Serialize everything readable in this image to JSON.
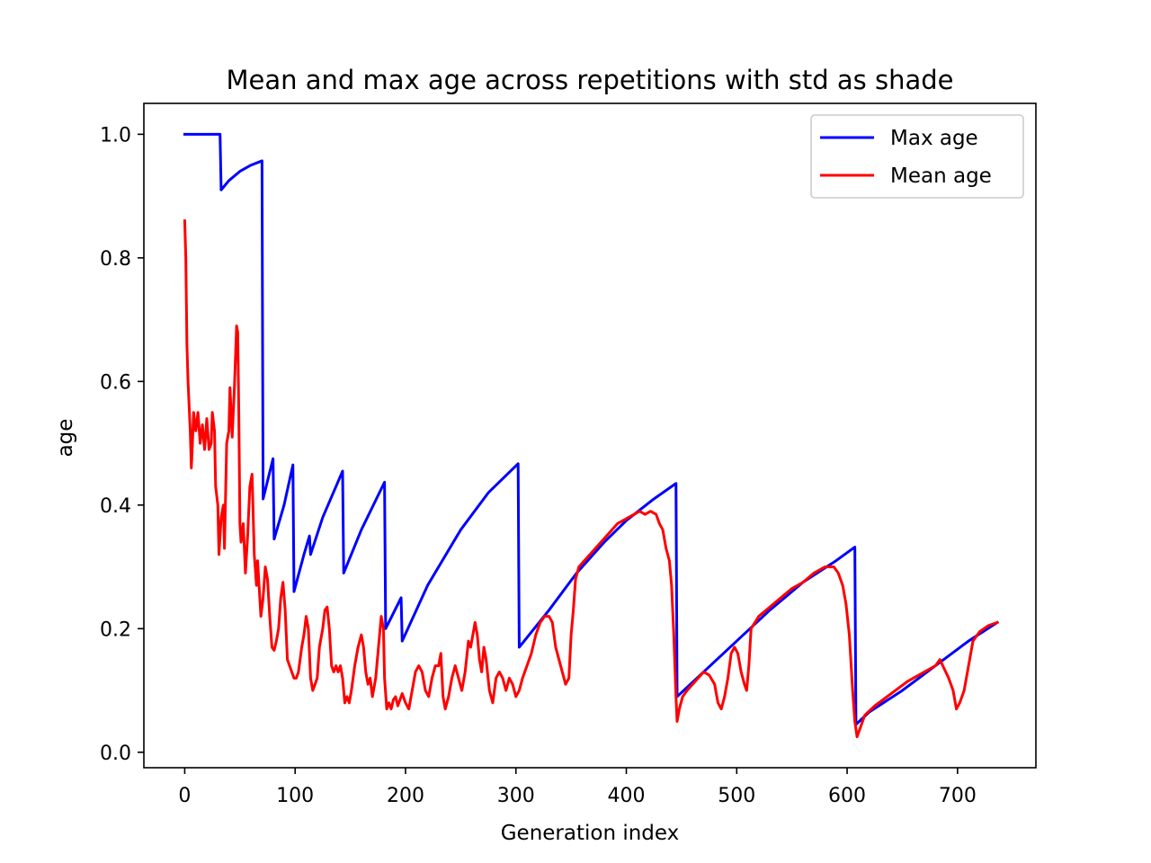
{
  "chart_data": {
    "type": "line",
    "title": "Mean and max age across repetitions with std as shade",
    "xlabel": "Generation index",
    "ylabel": "age",
    "xlim": [
      -37,
      771
    ],
    "ylim": [
      -0.025,
      1.05
    ],
    "xticks": [
      0,
      100,
      200,
      300,
      400,
      500,
      600,
      700
    ],
    "yticks": [
      0.0,
      0.2,
      0.4,
      0.6,
      0.8,
      1.0
    ],
    "xtick_labels": [
      "0",
      "100",
      "200",
      "300",
      "400",
      "500",
      "600",
      "700"
    ],
    "ytick_labels": [
      "0.0",
      "0.2",
      "0.4",
      "0.6",
      "0.8",
      "1.0"
    ],
    "legend": {
      "placement": "top-right",
      "entries": [
        "Max age",
        "Mean age"
      ]
    },
    "series": [
      {
        "name": "Max age",
        "color": "#0000ff",
        "points": [
          [
            0,
            1.0
          ],
          [
            32,
            1.0
          ],
          [
            33,
            0.91
          ],
          [
            40,
            0.925
          ],
          [
            50,
            0.94
          ],
          [
            60,
            0.95
          ],
          [
            70,
            0.957
          ],
          [
            71,
            0.41
          ],
          [
            80,
            0.475
          ],
          [
            81,
            0.345
          ],
          [
            90,
            0.4
          ],
          [
            98,
            0.465
          ],
          [
            99,
            0.26
          ],
          [
            108,
            0.32
          ],
          [
            113,
            0.35
          ],
          [
            114,
            0.32
          ],
          [
            125,
            0.38
          ],
          [
            143,
            0.455
          ],
          [
            144,
            0.29
          ],
          [
            160,
            0.36
          ],
          [
            181,
            0.437
          ],
          [
            182,
            0.2
          ],
          [
            196,
            0.25
          ],
          [
            197,
            0.18
          ],
          [
            220,
            0.27
          ],
          [
            250,
            0.36
          ],
          [
            275,
            0.42
          ],
          [
            302,
            0.467
          ],
          [
            303,
            0.17
          ],
          [
            330,
            0.23
          ],
          [
            355,
            0.29
          ],
          [
            380,
            0.34
          ],
          [
            400,
            0.375
          ],
          [
            425,
            0.41
          ],
          [
            445,
            0.435
          ],
          [
            446,
            0.09
          ],
          [
            470,
            0.13
          ],
          [
            500,
            0.18
          ],
          [
            530,
            0.23
          ],
          [
            560,
            0.275
          ],
          [
            590,
            0.31
          ],
          [
            607,
            0.332
          ],
          [
            608,
            0.045
          ],
          [
            620,
            0.065
          ],
          [
            650,
            0.1
          ],
          [
            680,
            0.14
          ],
          [
            710,
            0.18
          ],
          [
            736,
            0.21
          ]
        ]
      },
      {
        "name": "Mean age",
        "color": "#ff0000",
        "points": [
          [
            0,
            0.86
          ],
          [
            1,
            0.8
          ],
          [
            2,
            0.66
          ],
          [
            3,
            0.6
          ],
          [
            5,
            0.52
          ],
          [
            6,
            0.46
          ],
          [
            7,
            0.5
          ],
          [
            8,
            0.55
          ],
          [
            10,
            0.52
          ],
          [
            12,
            0.55
          ],
          [
            14,
            0.5
          ],
          [
            16,
            0.53
          ],
          [
            18,
            0.49
          ],
          [
            20,
            0.54
          ],
          [
            22,
            0.49
          ],
          [
            24,
            0.5
          ],
          [
            25,
            0.55
          ],
          [
            27,
            0.52
          ],
          [
            28,
            0.43
          ],
          [
            30,
            0.4
          ],
          [
            31,
            0.32
          ],
          [
            33,
            0.38
          ],
          [
            35,
            0.4
          ],
          [
            36,
            0.33
          ],
          [
            38,
            0.5
          ],
          [
            40,
            0.52
          ],
          [
            41,
            0.59
          ],
          [
            43,
            0.51
          ],
          [
            45,
            0.59
          ],
          [
            47,
            0.69
          ],
          [
            48,
            0.68
          ],
          [
            49,
            0.55
          ],
          [
            50,
            0.37
          ],
          [
            51,
            0.34
          ],
          [
            53,
            0.37
          ],
          [
            55,
            0.29
          ],
          [
            57,
            0.35
          ],
          [
            59,
            0.43
          ],
          [
            61,
            0.45
          ],
          [
            63,
            0.32
          ],
          [
            65,
            0.27
          ],
          [
            66,
            0.31
          ],
          [
            68,
            0.25
          ],
          [
            69,
            0.22
          ],
          [
            71,
            0.25
          ],
          [
            73,
            0.3
          ],
          [
            75,
            0.28
          ],
          [
            77,
            0.22
          ],
          [
            79,
            0.17
          ],
          [
            81,
            0.165
          ],
          [
            83,
            0.18
          ],
          [
            85,
            0.2
          ],
          [
            87,
            0.25
          ],
          [
            89,
            0.275
          ],
          [
            91,
            0.23
          ],
          [
            93,
            0.15
          ],
          [
            95,
            0.14
          ],
          [
            97,
            0.13
          ],
          [
            99,
            0.12
          ],
          [
            101,
            0.12
          ],
          [
            103,
            0.13
          ],
          [
            106,
            0.17
          ],
          [
            108,
            0.19
          ],
          [
            110,
            0.22
          ],
          [
            112,
            0.2
          ],
          [
            114,
            0.12
          ],
          [
            116,
            0.1
          ],
          [
            118,
            0.11
          ],
          [
            120,
            0.12
          ],
          [
            122,
            0.17
          ],
          [
            125,
            0.2
          ],
          [
            127,
            0.23
          ],
          [
            129,
            0.235
          ],
          [
            131,
            0.2
          ],
          [
            133,
            0.14
          ],
          [
            135,
            0.13
          ],
          [
            137,
            0.14
          ],
          [
            139,
            0.13
          ],
          [
            141,
            0.14
          ],
          [
            143,
            0.12
          ],
          [
            145,
            0.08
          ],
          [
            147,
            0.09
          ],
          [
            149,
            0.08
          ],
          [
            151,
            0.1
          ],
          [
            154,
            0.14
          ],
          [
            157,
            0.17
          ],
          [
            160,
            0.19
          ],
          [
            162,
            0.17
          ],
          [
            164,
            0.13
          ],
          [
            166,
            0.11
          ],
          [
            168,
            0.12
          ],
          [
            170,
            0.09
          ],
          [
            173,
            0.12
          ],
          [
            176,
            0.18
          ],
          [
            178,
            0.22
          ],
          [
            180,
            0.2
          ],
          [
            181,
            0.12
          ],
          [
            183,
            0.07
          ],
          [
            185,
            0.08
          ],
          [
            187,
            0.07
          ],
          [
            189,
            0.085
          ],
          [
            191,
            0.09
          ],
          [
            193,
            0.075
          ],
          [
            195,
            0.085
          ],
          [
            197,
            0.095
          ],
          [
            200,
            0.08
          ],
          [
            203,
            0.07
          ],
          [
            206,
            0.1
          ],
          [
            209,
            0.13
          ],
          [
            212,
            0.14
          ],
          [
            215,
            0.13
          ],
          [
            218,
            0.1
          ],
          [
            221,
            0.09
          ],
          [
            224,
            0.12
          ],
          [
            227,
            0.14
          ],
          [
            230,
            0.14
          ],
          [
            232,
            0.16
          ],
          [
            234,
            0.09
          ],
          [
            236,
            0.07
          ],
          [
            239,
            0.09
          ],
          [
            242,
            0.12
          ],
          [
            245,
            0.14
          ],
          [
            248,
            0.12
          ],
          [
            251,
            0.1
          ],
          [
            254,
            0.13
          ],
          [
            257,
            0.18
          ],
          [
            259,
            0.17
          ],
          [
            261,
            0.19
          ],
          [
            263,
            0.21
          ],
          [
            265,
            0.19
          ],
          [
            267,
            0.15
          ],
          [
            269,
            0.13
          ],
          [
            271,
            0.17
          ],
          [
            273,
            0.15
          ],
          [
            276,
            0.1
          ],
          [
            279,
            0.08
          ],
          [
            282,
            0.12
          ],
          [
            285,
            0.13
          ],
          [
            288,
            0.12
          ],
          [
            291,
            0.1
          ],
          [
            294,
            0.12
          ],
          [
            297,
            0.11
          ],
          [
            300,
            0.09
          ],
          [
            303,
            0.1
          ],
          [
            306,
            0.12
          ],
          [
            310,
            0.14
          ],
          [
            314,
            0.16
          ],
          [
            318,
            0.19
          ],
          [
            322,
            0.21
          ],
          [
            326,
            0.22
          ],
          [
            330,
            0.22
          ],
          [
            333,
            0.21
          ],
          [
            336,
            0.17
          ],
          [
            339,
            0.15
          ],
          [
            342,
            0.13
          ],
          [
            345,
            0.11
          ],
          [
            348,
            0.12
          ],
          [
            350,
            0.19
          ],
          [
            352,
            0.23
          ],
          [
            354,
            0.28
          ],
          [
            357,
            0.3
          ],
          [
            362,
            0.31
          ],
          [
            367,
            0.32
          ],
          [
            372,
            0.33
          ],
          [
            377,
            0.34
          ],
          [
            382,
            0.35
          ],
          [
            387,
            0.36
          ],
          [
            392,
            0.37
          ],
          [
            397,
            0.375
          ],
          [
            402,
            0.38
          ],
          [
            407,
            0.385
          ],
          [
            412,
            0.39
          ],
          [
            417,
            0.385
          ],
          [
            422,
            0.39
          ],
          [
            427,
            0.385
          ],
          [
            430,
            0.37
          ],
          [
            433,
            0.36
          ],
          [
            436,
            0.33
          ],
          [
            439,
            0.31
          ],
          [
            441,
            0.27
          ],
          [
            443,
            0.19
          ],
          [
            445,
            0.09
          ],
          [
            446,
            0.05
          ],
          [
            448,
            0.07
          ],
          [
            451,
            0.09
          ],
          [
            455,
            0.1
          ],
          [
            460,
            0.11
          ],
          [
            465,
            0.12
          ],
          [
            470,
            0.13
          ],
          [
            475,
            0.125
          ],
          [
            480,
            0.11
          ],
          [
            483,
            0.08
          ],
          [
            486,
            0.07
          ],
          [
            489,
            0.09
          ],
          [
            492,
            0.12
          ],
          [
            495,
            0.16
          ],
          [
            498,
            0.17
          ],
          [
            501,
            0.16
          ],
          [
            504,
            0.13
          ],
          [
            507,
            0.11
          ],
          [
            509,
            0.1
          ],
          [
            511,
            0.14
          ],
          [
            513,
            0.2
          ],
          [
            520,
            0.22
          ],
          [
            530,
            0.235
          ],
          [
            540,
            0.25
          ],
          [
            550,
            0.265
          ],
          [
            560,
            0.275
          ],
          [
            570,
            0.29
          ],
          [
            580,
            0.3
          ],
          [
            588,
            0.3
          ],
          [
            592,
            0.29
          ],
          [
            596,
            0.27
          ],
          [
            599,
            0.24
          ],
          [
            602,
            0.19
          ],
          [
            605,
            0.1
          ],
          [
            607,
            0.05
          ],
          [
            609,
            0.025
          ],
          [
            612,
            0.04
          ],
          [
            616,
            0.06
          ],
          [
            625,
            0.075
          ],
          [
            640,
            0.095
          ],
          [
            655,
            0.115
          ],
          [
            670,
            0.13
          ],
          [
            680,
            0.14
          ],
          [
            684,
            0.15
          ],
          [
            688,
            0.135
          ],
          [
            692,
            0.12
          ],
          [
            696,
            0.1
          ],
          [
            699,
            0.07
          ],
          [
            702,
            0.08
          ],
          [
            706,
            0.1
          ],
          [
            710,
            0.14
          ],
          [
            714,
            0.18
          ],
          [
            720,
            0.195
          ],
          [
            728,
            0.205
          ],
          [
            736,
            0.21
          ]
        ]
      }
    ]
  }
}
